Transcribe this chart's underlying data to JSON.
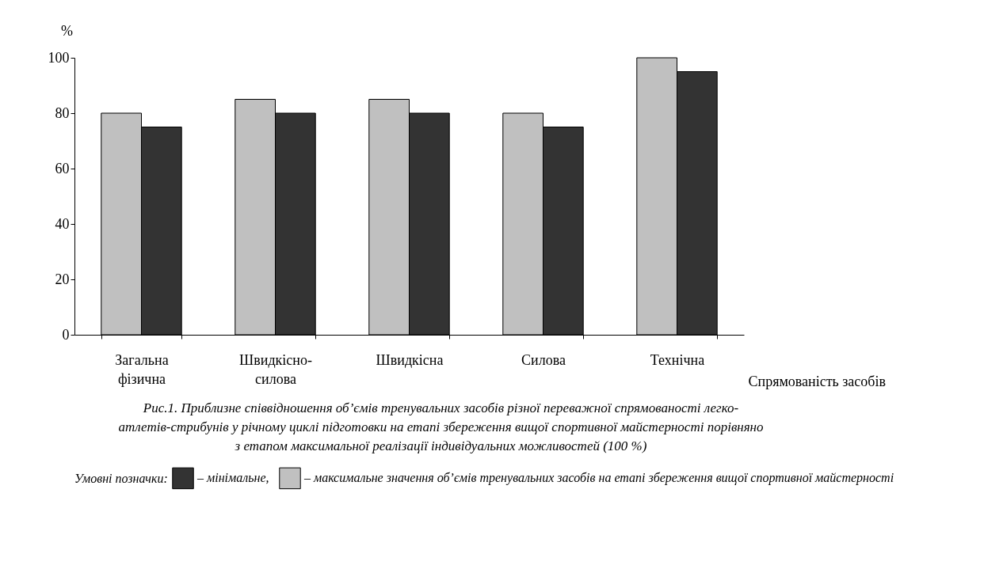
{
  "chart_data": {
    "type": "bar",
    "categories": [
      "Загальна фізична",
      "Швидкісно-силова",
      "Швидкісна",
      "Силова",
      "Технічна"
    ],
    "series": [
      {
        "name": "– максимальне значення об’ємів тренувальних засобів на етапі збереження вищої спортивної майстерності",
        "color": "#c0c0c0",
        "values": [
          80,
          85,
          85,
          80,
          100
        ]
      },
      {
        "name": "– мінімальне,",
        "color": "#333333",
        "values": [
          75,
          80,
          80,
          75,
          95
        ]
      }
    ],
    "ylabel": "%",
    "xlabel": "Спрямованість засобів",
    "legend_title": "Умовні позначки:",
    "ylim": [
      0,
      100
    ],
    "yticks": [
      0,
      20,
      40,
      60,
      80,
      100
    ],
    "grid": false,
    "legend": "bottom",
    "annotations": [
      "Рис.1. Приблизне співвідношення об’ємів тренувальних засобів різної переважної спрямованості легко-атлетів-стрибунів у річному циклі підготовки на етапі збереження вищої спортивної майстерності порівняно з етапом максимальної реалізації індивідуальних можливостей (100 %)"
    ]
  }
}
